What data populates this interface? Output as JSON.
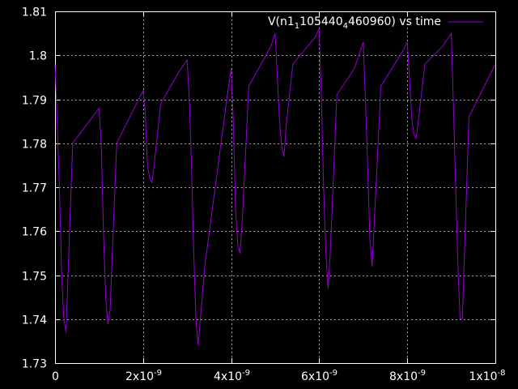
{
  "chart_data": {
    "type": "line",
    "title": "",
    "xlabel": "",
    "ylabel": "",
    "xlim": [
      0,
      1e-08
    ],
    "ylim": [
      1.73,
      1.81
    ],
    "grid": true,
    "legend_position": "top-right",
    "x_ticks": [
      {
        "value": 0,
        "label": "0"
      },
      {
        "value": 2e-09,
        "label": "2x10",
        "exp": "-9"
      },
      {
        "value": 4e-09,
        "label": "4x10",
        "exp": "-9"
      },
      {
        "value": 6e-09,
        "label": "6x10",
        "exp": "-9"
      },
      {
        "value": 8e-09,
        "label": "8x10",
        "exp": "-9"
      },
      {
        "value": 1e-08,
        "label": "1x10",
        "exp": "-8"
      }
    ],
    "y_ticks": [
      {
        "value": 1.73,
        "label": "1.73"
      },
      {
        "value": 1.74,
        "label": "1.74"
      },
      {
        "value": 1.75,
        "label": "1.75"
      },
      {
        "value": 1.76,
        "label": "1.76"
      },
      {
        "value": 1.77,
        "label": "1.77"
      },
      {
        "value": 1.78,
        "label": "1.78"
      },
      {
        "value": 1.79,
        "label": "1.79"
      },
      {
        "value": 1.8,
        "label": "1.8"
      },
      {
        "value": 1.81,
        "label": "1.81"
      }
    ],
    "series": [
      {
        "name": "V(n1_1105440_4460960) vs time",
        "legend_text": {
          "prefix": "V(n1",
          "sub1": "1",
          "middle": "105440",
          "sub2": "4",
          "suffix": "460960) vs time"
        },
        "color": "#9400d3",
        "x": [
          0,
          5e-11,
          1e-10,
          1.5e-10,
          2e-10,
          2.5e-10,
          4e-10,
          1e-09,
          1.05e-09,
          1.1e-09,
          1.15e-09,
          1.2e-09,
          1.25e-09,
          1.4e-09,
          2e-09,
          2.05e-09,
          2.1e-09,
          2.15e-09,
          2.2e-09,
          2.25e-09,
          2.4e-09,
          2.8e-09,
          3e-09,
          3.05e-09,
          3.1e-09,
          3.15e-09,
          3.2e-09,
          3.25e-09,
          3.4e-09,
          3.9e-09,
          4e-09,
          4.05e-09,
          4.1e-09,
          4.15e-09,
          4.2e-09,
          4.25e-09,
          4.4e-09,
          4.9e-09,
          5e-09,
          5.05e-09,
          5.1e-09,
          5.15e-09,
          5.2e-09,
          5.25e-09,
          5.4e-09,
          5.9e-09,
          6e-09,
          6.05e-09,
          6.1e-09,
          6.15e-09,
          6.2e-09,
          6.25e-09,
          6.4e-09,
          6.8e-09,
          7e-09,
          7.05e-09,
          7.1e-09,
          7.15e-09,
          7.2e-09,
          7.25e-09,
          7.4e-09,
          7.9e-09,
          8e-09,
          8.05e-09,
          8.1e-09,
          8.15e-09,
          8.2e-09,
          8.25e-09,
          8.4e-09,
          8.8e-09,
          9e-09,
          9.05e-09,
          9.1e-09,
          9.15e-09,
          9.2e-09,
          9.25e-09,
          9.4e-09,
          9.6e-09,
          1e-08
        ],
        "y": [
          1.798,
          1.785,
          1.77,
          1.75,
          1.74,
          1.737,
          1.78,
          1.788,
          1.78,
          1.76,
          1.745,
          1.739,
          1.742,
          1.78,
          1.792,
          1.787,
          1.775,
          1.772,
          1.771,
          1.775,
          1.789,
          1.796,
          1.799,
          1.79,
          1.775,
          1.755,
          1.74,
          1.734,
          1.752,
          1.79,
          1.797,
          1.785,
          1.765,
          1.757,
          1.755,
          1.762,
          1.793,
          1.802,
          1.805,
          1.795,
          1.785,
          1.779,
          1.777,
          1.784,
          1.798,
          1.804,
          1.806,
          1.79,
          1.77,
          1.755,
          1.747,
          1.755,
          1.791,
          1.797,
          1.803,
          1.79,
          1.775,
          1.758,
          1.752,
          1.762,
          1.793,
          1.801,
          1.803,
          1.795,
          1.786,
          1.782,
          1.781,
          1.785,
          1.798,
          1.802,
          1.805,
          1.788,
          1.77,
          1.752,
          1.74,
          1.74,
          1.786,
          1.79,
          1.798
        ]
      }
    ]
  }
}
